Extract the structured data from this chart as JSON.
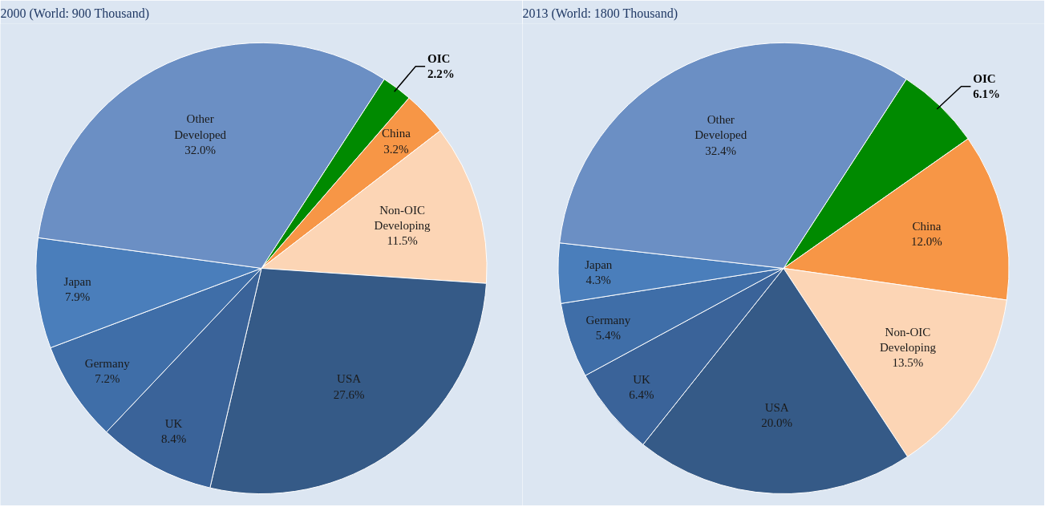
{
  "chart_data": [
    {
      "type": "pie",
      "title": "2000 (World: 900 Thousand)",
      "categories": [
        "OIC",
        "China",
        "Non-OIC\nDeveloping",
        "USA",
        "UK",
        "Germany",
        "Japan",
        "Other\nDeveloped"
      ],
      "values": [
        2.2,
        3.2,
        11.5,
        27.6,
        8.4,
        7.2,
        7.9,
        32.0
      ],
      "value_labels": [
        "2.2%",
        "3.2%",
        "11.5%",
        "27.6%",
        "8.4%",
        "7.2%",
        "7.9%",
        "32.0%"
      ],
      "colors": [
        "#008a00",
        "#f79646",
        "#fcd5b5",
        "#355a87",
        "#3a6399",
        "#3f6ea8",
        "#4a7ebb",
        "#6b8fc4"
      ]
    },
    {
      "type": "pie",
      "title": "2013 (World: 1800 Thousand)",
      "categories": [
        "OIC",
        "China",
        "Non-OIC\nDeveloping",
        "USA",
        "UK",
        "Germany",
        "Japan",
        "Other\nDeveloped"
      ],
      "values": [
        6.1,
        12.0,
        13.5,
        20.0,
        6.4,
        5.4,
        4.3,
        32.4
      ],
      "value_labels": [
        "6.1%",
        "12.0%",
        "13.5%",
        "20.0%",
        "6.4%",
        "5.4%",
        "4.3%",
        "32.4%"
      ],
      "colors": [
        "#008a00",
        "#f79646",
        "#fcd5b5",
        "#355a87",
        "#3a6399",
        "#3f6ea8",
        "#4a7ebb",
        "#6b8fc4"
      ]
    }
  ]
}
